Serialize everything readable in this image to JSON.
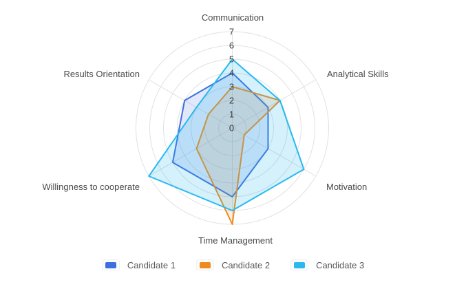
{
  "chart_data": {
    "type": "radar",
    "axes": [
      "Communication",
      "Analytical Skills",
      "Motivation",
      "Time Management",
      "Willingness to cooperate",
      "Results Orientation"
    ],
    "axis_range": [
      0,
      7
    ],
    "max": 7,
    "ticks": [
      "0",
      "1",
      "2",
      "3",
      "4",
      "5",
      "6",
      "7"
    ],
    "grid": "circular rings with 6 radial spokes",
    "legend_position": "bottom",
    "series": [
      {
        "name": "Candidate 1",
        "values": [
          4,
          3,
          3,
          5,
          5,
          4
        ],
        "color": "#3D6EE0",
        "fill_color": "rgba(61,110,224,0.16)"
      },
      {
        "name": "Candidate 2",
        "values": [
          3,
          4,
          1,
          7,
          3,
          2
        ],
        "color": "#EE8A1D",
        "fill_color": "rgba(238,138,29,0.14)"
      },
      {
        "name": "Candidate 3",
        "values": [
          5,
          4,
          6,
          6,
          7,
          3
        ],
        "color": "#29B9EF",
        "fill_color": "rgba(41,185,239,0.20)"
      }
    ]
  },
  "colors": {
    "background": "#ffffff",
    "grid_line": "#e1e1e4",
    "tick_text": "#404040",
    "axis_label_text": "#4a4a4a",
    "legend_text": "#595959"
  }
}
